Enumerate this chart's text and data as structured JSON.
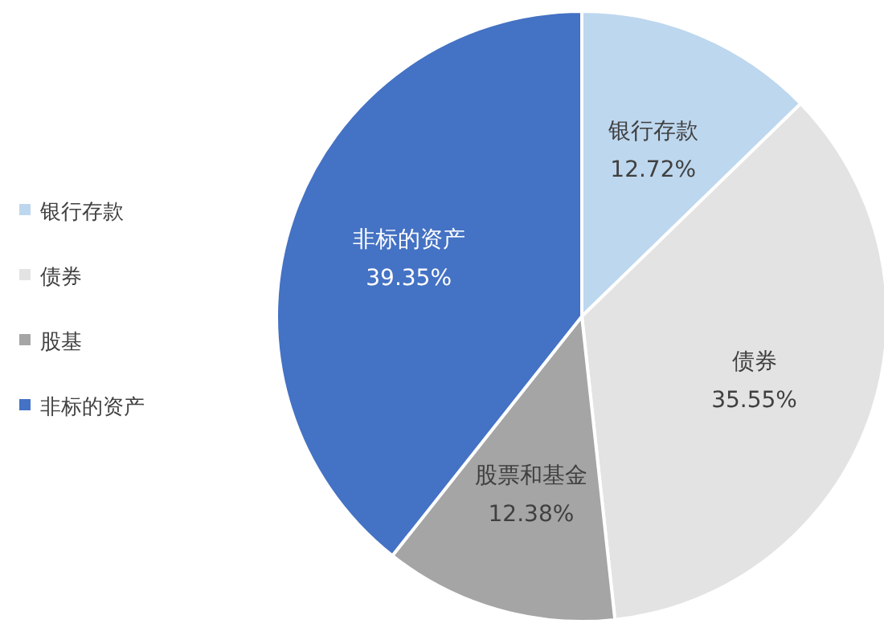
{
  "chart_data": {
    "type": "pie",
    "categories": [
      "银行存款",
      "债券",
      "股基",
      "非标的资产"
    ],
    "values": [
      12.72,
      35.55,
      12.38,
      39.35
    ],
    "colors": [
      "#bdd7ee",
      "#e3e3e3",
      "#a5a5a5",
      "#4472c4"
    ],
    "value_labels": [
      "银行存款\n12.72%",
      "债券\n35.55%",
      "股票和基金\n12.38%",
      "非标的资产\n39.35%"
    ],
    "legend": "left"
  }
}
